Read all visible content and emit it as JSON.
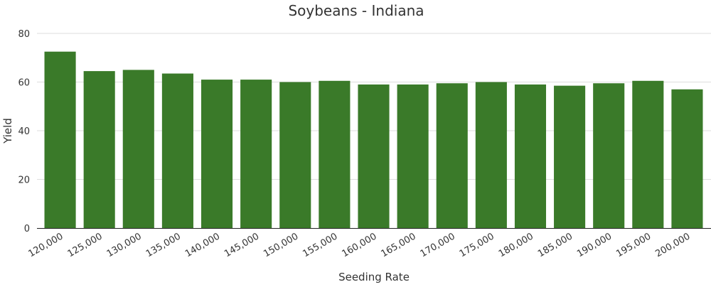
{
  "chart_data": {
    "type": "bar",
    "title": "Soybeans - Indiana",
    "xlabel": "Seeding Rate",
    "ylabel": "Yield",
    "categories": [
      "120,000",
      "125,000",
      "130,000",
      "135,000",
      "140,000",
      "145,000",
      "150,000",
      "155,000",
      "160,000",
      "165,000",
      "170,000",
      "175,000",
      "180,000",
      "185,000",
      "190,000",
      "195,000",
      "200,000"
    ],
    "values": [
      72.5,
      64.5,
      65.0,
      63.5,
      61.0,
      61.0,
      60.0,
      60.5,
      59.0,
      59.0,
      59.5,
      60.0,
      59.0,
      58.5,
      59.5,
      60.5,
      57.0
    ],
    "ylim": [
      0,
      80
    ],
    "yticks": [
      "0",
      "20",
      "40",
      "60",
      "80"
    ],
    "grid": true,
    "legend": false,
    "bar_color": "#3a7a29"
  }
}
